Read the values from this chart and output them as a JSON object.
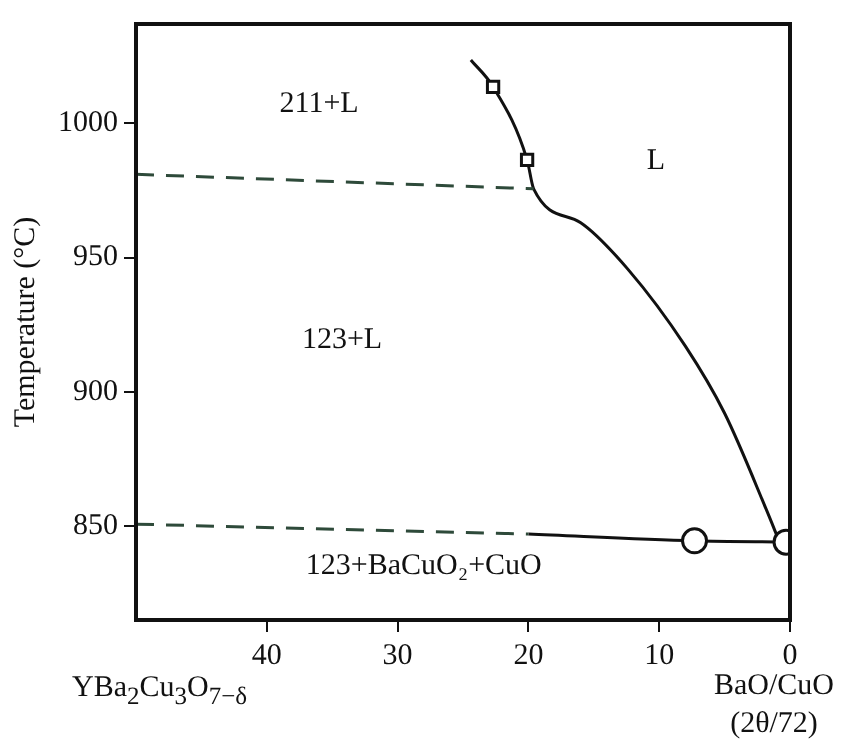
{
  "chart_data": {
    "type": "line",
    "ylabel": "Temperature (°C)",
    "xlim": [
      50,
      0
    ],
    "xticks": [
      40,
      30,
      20,
      10,
      0
    ],
    "ylim": [
      815,
      1037
    ],
    "yticks": [
      850,
      900,
      950,
      1000
    ],
    "grid": false,
    "legend": false,
    "series": [
      {
        "line_style": "dashed",
        "color": "#2e4a3a",
        "x": [
          50,
          19.6
        ],
        "values": [
          981,
          975.6
        ]
      },
      {
        "line_style": "solid",
        "color": "#111111",
        "x": [
          24.4,
          22.7,
          20.1,
          19.6,
          16,
          12.4,
          8,
          5,
          1.8,
          0.8
        ],
        "values": [
          1023.6,
          1013.6,
          986.4,
          975.6,
          963,
          945.7,
          917,
          892,
          856,
          844
        ]
      },
      {
        "line_style": "dashed",
        "color": "#2e4a3a",
        "x": [
          50,
          20
        ],
        "values": [
          850.7,
          847
        ]
      },
      {
        "line_style": "solid",
        "color": "#111111",
        "x": [
          20,
          7.3,
          0.3
        ],
        "values": [
          847,
          844.5,
          844
        ]
      },
      {
        "type": "scatter",
        "marker": "square",
        "color": "#111111",
        "x": [
          22.7,
          20.1
        ],
        "values": [
          1013.6,
          986.4
        ]
      },
      {
        "type": "scatter",
        "marker": "circle",
        "color": "#111111",
        "x": [
          7.3,
          0.3
        ],
        "values": [
          844.5,
          844
        ]
      }
    ],
    "annotations": [
      "211+L",
      "L",
      "123+L",
      "123+BaCuO₂+CuO",
      "YBa$_{2}$Cu$_{3}$O$_{7−δ}$",
      "BaO/CuO (2θ/72)"
    ]
  }
}
